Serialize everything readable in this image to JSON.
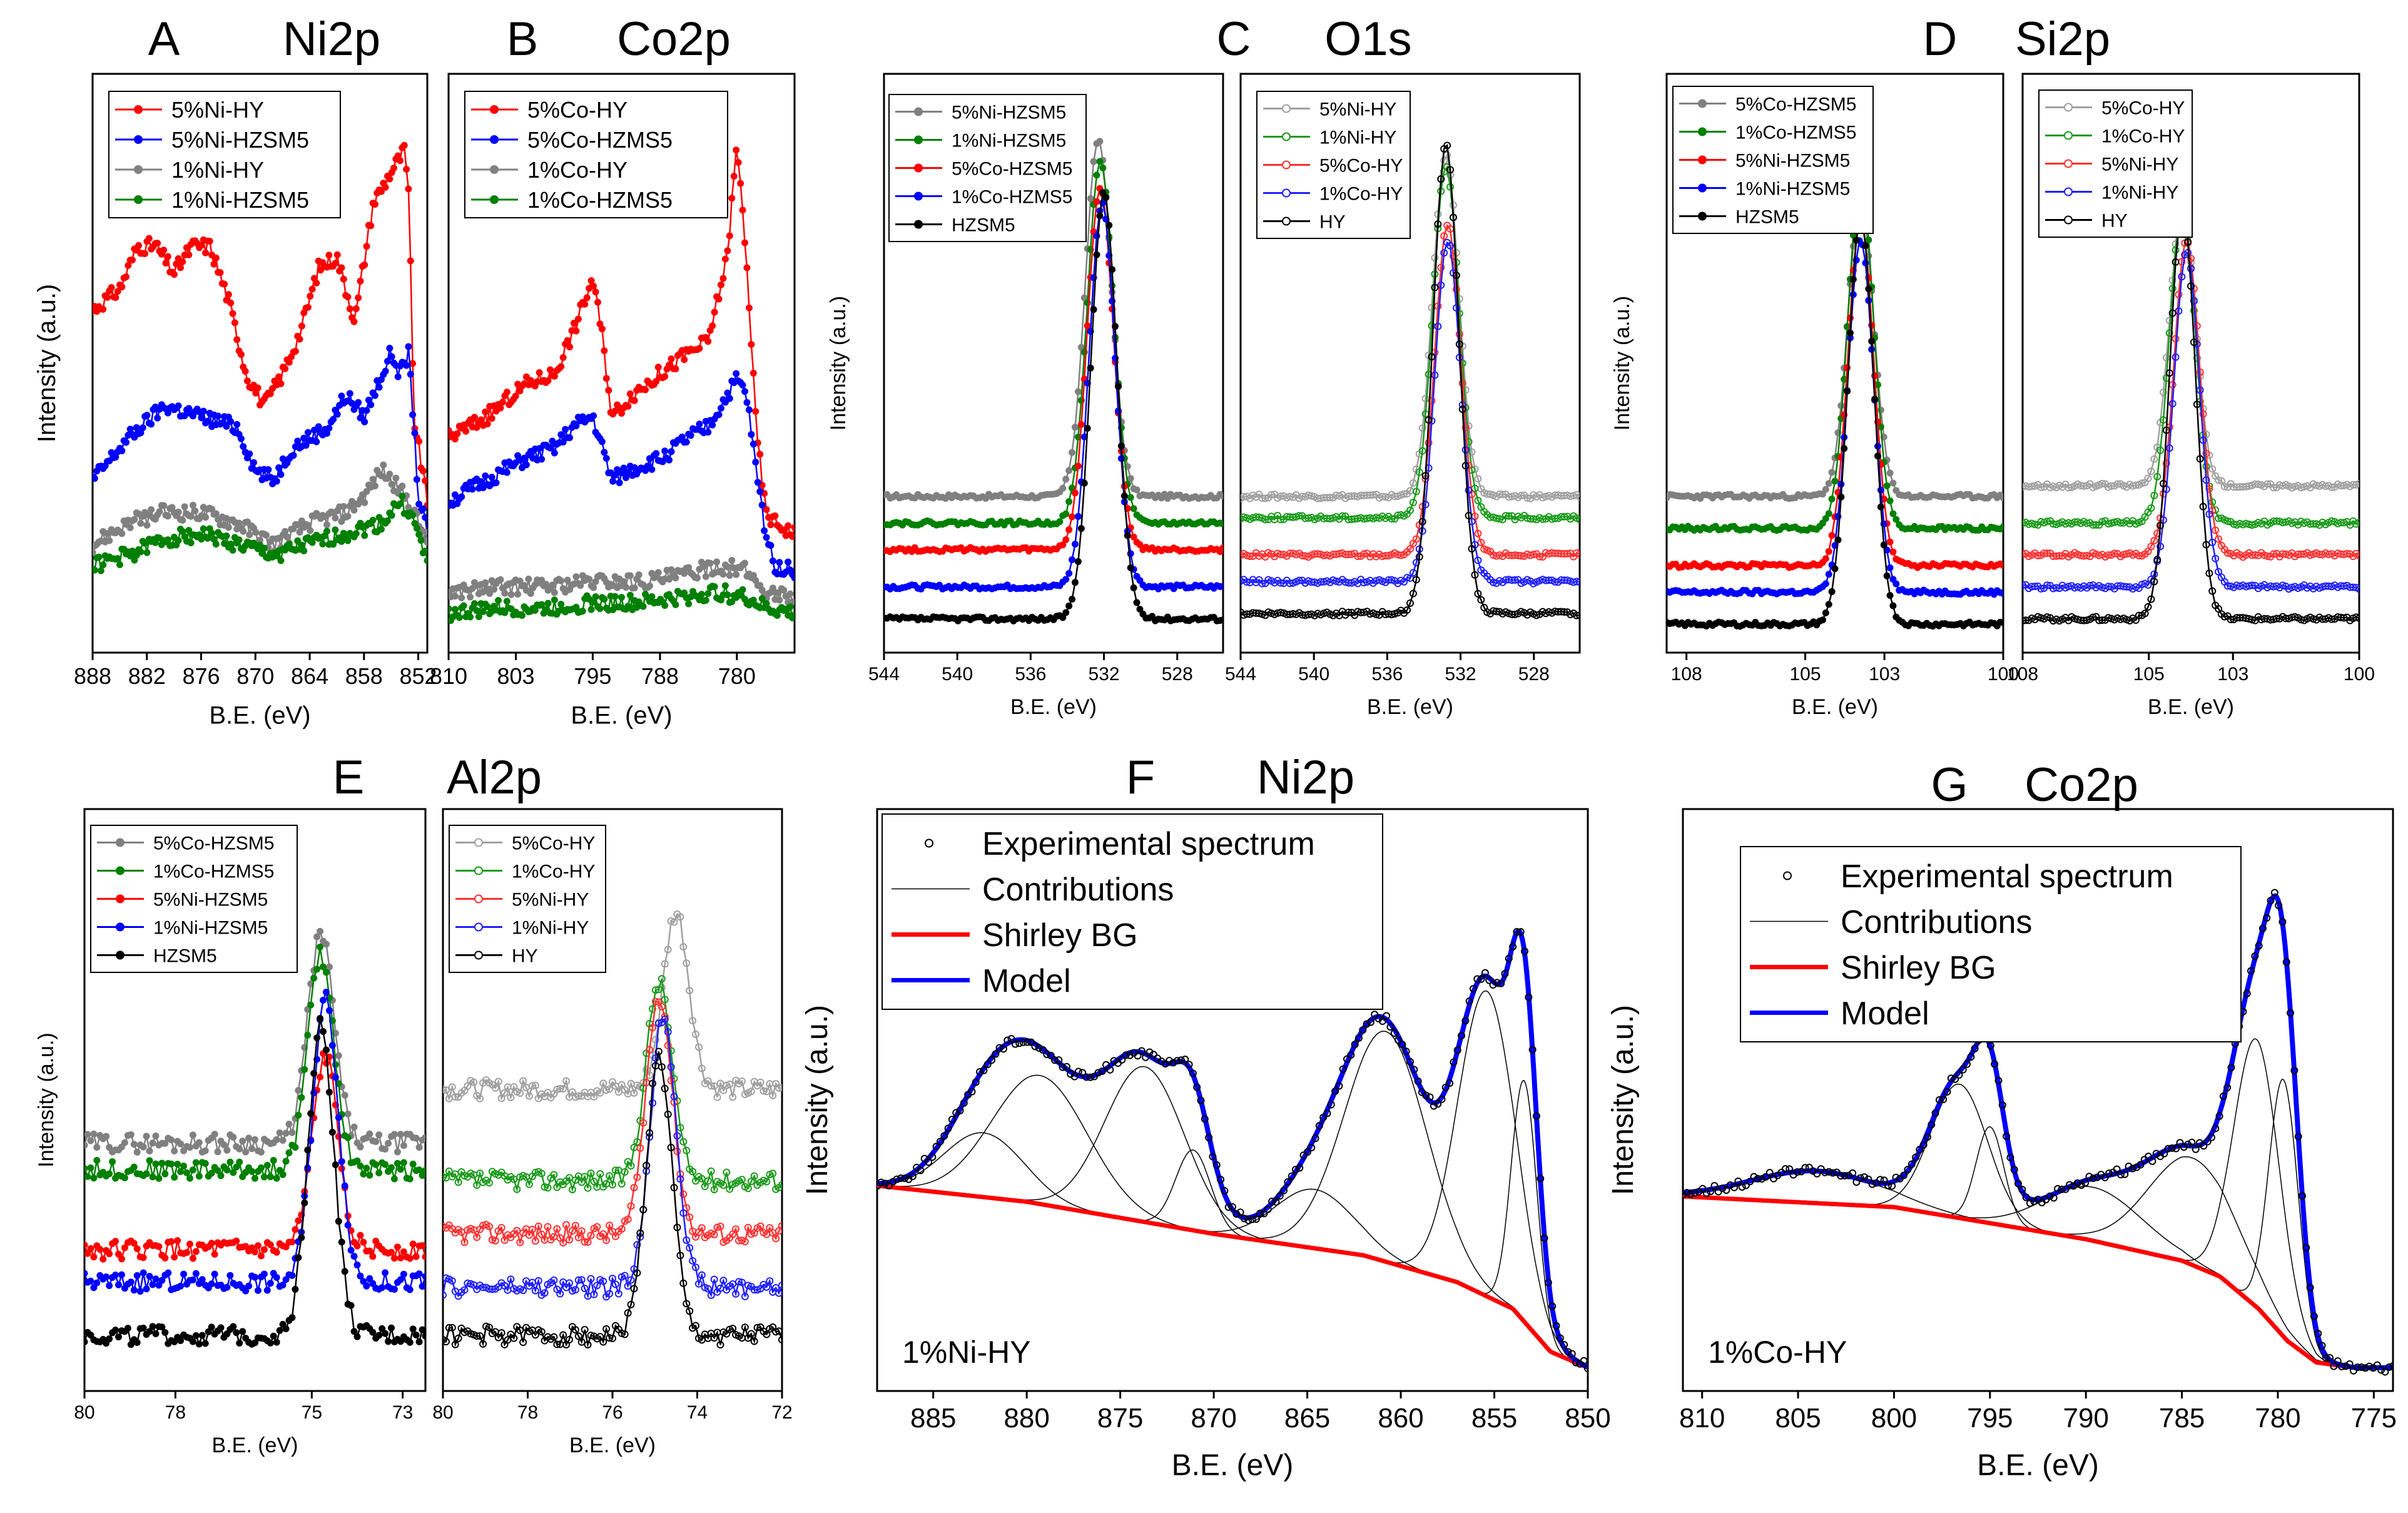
{
  "figure": {
    "panel_titles": [
      {
        "letter": "A",
        "element": "Ni2p"
      },
      {
        "letter": "B",
        "element": "Co2p"
      },
      {
        "letter": "C",
        "element": "O1s"
      },
      {
        "letter": "D",
        "element": "Si2p"
      },
      {
        "letter": "E",
        "element": "Al2p"
      },
      {
        "letter": "F",
        "element": "Ni2p"
      },
      {
        "letter": "G",
        "element": "Co2p"
      }
    ],
    "colors": {
      "red": "#ff0000",
      "blue": "#0000ff",
      "gray": "#808080",
      "green": "#008000",
      "black": "#000000",
      "gray_light": "#a0a0a0",
      "green_light": "#1a9a1a",
      "red_light": "#ff3030",
      "blue_light": "#2020ff"
    }
  },
  "chart_data": [
    {
      "id": "A",
      "type": "line",
      "title": "A   Ni2p",
      "xlabel": "B.E. (eV)",
      "ylabel": "Intensity (a.u.)",
      "xlim": [
        888,
        851
      ],
      "ylim": [
        0,
        100
      ],
      "xticks": [
        888,
        882,
        876,
        870,
        864,
        858,
        852
      ],
      "marker": "filled-circle",
      "legend_position": "top-left",
      "series": [
        {
          "name": "5%Ni-HY",
          "color": "#ff0000",
          "x": [
            888,
            885,
            883,
            881,
            879,
            877,
            875,
            873,
            871,
            869,
            867,
            865,
            863,
            861,
            859,
            857,
            855,
            853.5,
            853,
            852.5,
            851
          ],
          "y": [
            60,
            64,
            72,
            72,
            67,
            72,
            72,
            62,
            48,
            42,
            48,
            56,
            68,
            70,
            58,
            80,
            86,
            90,
            80,
            40,
            24
          ]
        },
        {
          "name": "5%Ni-HZSM5",
          "color": "#0000ff",
          "x": [
            888,
            884,
            880,
            876,
            872,
            870,
            868,
            866,
            862,
            860,
            858,
            856,
            855,
            854,
            853,
            852,
            851
          ],
          "y": [
            28,
            36,
            42,
            40,
            38,
            30,
            28,
            34,
            38,
            44,
            40,
            48,
            52,
            48,
            52,
            25,
            18
          ]
        },
        {
          "name": "1%Ni-HY",
          "color": "#808080",
          "x": [
            888,
            884,
            880,
            876,
            872,
            868,
            864,
            860,
            858,
            856,
            854,
            853,
            852,
            851
          ],
          "y": [
            16,
            20,
            22,
            22,
            20,
            16,
            20,
            22,
            25,
            30,
            26,
            24,
            20,
            16
          ]
        },
        {
          "name": "1%Ni-HZSM5",
          "color": "#008000",
          "x": [
            888,
            884,
            880,
            876,
            872,
            868,
            864,
            860,
            856,
            854,
            853,
            852,
            851
          ],
          "y": [
            12,
            14,
            17,
            18,
            16,
            14,
            16,
            18,
            20,
            24,
            22,
            18,
            12
          ]
        }
      ]
    },
    {
      "id": "B",
      "type": "line",
      "title": "B   Co2p",
      "xlabel": "B.E. (eV)",
      "ylabel": "",
      "xlim": [
        810,
        774
      ],
      "ylim": [
        0,
        100
      ],
      "xticks": [
        810,
        803,
        795,
        788,
        780
      ],
      "marker": "filled-circle",
      "legend_position": "top-left",
      "series": [
        {
          "name": "5%Co-HY",
          "color": "#ff0000",
          "x": [
            810,
            806,
            802,
            799,
            797,
            795,
            794,
            793,
            791,
            788,
            785,
            783,
            781,
            780,
            779,
            778,
            777,
            776,
            774
          ],
          "y": [
            36,
            40,
            46,
            48,
            56,
            66,
            55,
            40,
            44,
            48,
            52,
            54,
            70,
            91,
            70,
            38,
            22,
            20,
            18
          ]
        },
        {
          "name": "5%Co-HZMS5",
          "color": "#0000ff",
          "x": [
            810,
            806,
            802,
            799,
            797,
            795,
            793,
            791,
            788,
            785,
            783,
            781,
            780,
            779,
            778,
            777,
            776,
            774
          ],
          "y": [
            24,
            28,
            32,
            34,
            38,
            40,
            28,
            30,
            32,
            36,
            38,
            44,
            47,
            44,
            30,
            18,
            12,
            11
          ]
        },
        {
          "name": "1%Co-HY",
          "color": "#808080",
          "x": [
            810,
            805,
            800,
            795,
            790,
            786,
            782,
            779,
            777,
            774
          ],
          "y": [
            7,
            8,
            8,
            9,
            9,
            10,
            12,
            11,
            7,
            6
          ]
        },
        {
          "name": "1%Co-HZMS5",
          "color": "#008000",
          "x": [
            810,
            805,
            800,
            795,
            790,
            786,
            782,
            779,
            777,
            774
          ],
          "y": [
            3,
            4,
            4,
            5,
            5,
            6,
            7,
            6,
            4,
            3
          ]
        }
      ]
    },
    {
      "id": "C1",
      "type": "line",
      "title": "C   O1s",
      "xlabel": "B.E. (eV)",
      "ylabel": "Intensity (a.u.)",
      "xlim": [
        544,
        525.5
      ],
      "ylim": [
        0,
        100
      ],
      "xticks": [
        544,
        540,
        536,
        532,
        528
      ],
      "marker": "filled-circle",
      "legend_position": "top-left",
      "series": [
        {
          "name": "5%Ni-HZSM5",
          "color": "#808080",
          "base": 25,
          "peak": 92,
          "center": 532.3
        },
        {
          "name": "1%Ni-HZSM5",
          "color": "#008000",
          "base": 20,
          "peak": 88,
          "center": 532.2
        },
        {
          "name": "5%Co-HZSM5",
          "color": "#ff0000",
          "base": 15,
          "peak": 83,
          "center": 532.2
        },
        {
          "name": "1%Co-HZMS5",
          "color": "#0000ff",
          "base": 8,
          "peak": 80,
          "center": 532.1
        },
        {
          "name": "HZSM5",
          "color": "#000000",
          "base": 2,
          "peak": 82,
          "center": 532.0
        }
      ]
    },
    {
      "id": "C2",
      "type": "line",
      "title": "",
      "xlabel": "B.E. (eV)",
      "ylabel": "",
      "xlim": [
        544,
        525.5
      ],
      "ylim": [
        0,
        100
      ],
      "xticks": [
        544,
        540,
        536,
        532,
        528
      ],
      "marker": "open-circle",
      "legend_position": "top-left",
      "series": [
        {
          "name": "5%Ni-HY",
          "color": "#a0a0a0",
          "base": 25,
          "peak": 89,
          "center": 532.8
        },
        {
          "name": "1%Ni-HY",
          "color": "#1a9a1a",
          "base": 21,
          "peak": 87,
          "center": 532.8
        },
        {
          "name": "5%Co-HY",
          "color": "#ff3030",
          "base": 14,
          "peak": 76,
          "center": 532.7
        },
        {
          "name": "1%Co-HY",
          "color": "#2020ff",
          "base": 9,
          "peak": 73,
          "center": 532.7
        },
        {
          "name": "HY",
          "color": "#000000",
          "base": 3,
          "peak": 91,
          "center": 532.8
        }
      ]
    },
    {
      "id": "D1",
      "type": "line",
      "title": "D   Si2p",
      "xlabel": "B.E. (eV)",
      "ylabel": "Intensity (a.u.)",
      "xlim": [
        108.5,
        100
      ],
      "ylim": [
        0,
        100
      ],
      "xticks": [
        108,
        105,
        103,
        100
      ],
      "marker": "filled-circle",
      "legend_position": "top-left",
      "series": [
        {
          "name": "5%Co-HZSM5",
          "color": "#808080",
          "base": 25,
          "peak": 80,
          "center": 103.6
        },
        {
          "name": "1%Co-HZMS5",
          "color": "#008000",
          "base": 19,
          "peak": 84,
          "center": 103.6
        },
        {
          "name": "5%Ni-HZSM5",
          "color": "#ff0000",
          "base": 12,
          "peak": 77,
          "center": 103.6
        },
        {
          "name": "1%Ni-HZSM5",
          "color": "#0000ff",
          "base": 7,
          "peak": 73,
          "center": 103.6
        },
        {
          "name": "HZSM5",
          "color": "#000000",
          "base": 1,
          "peak": 77,
          "center": 103.6
        }
      ]
    },
    {
      "id": "D2",
      "type": "line",
      "title": "",
      "xlabel": "B.E. (eV)",
      "ylabel": "",
      "xlim": [
        108,
        100
      ],
      "ylim": [
        0,
        100
      ],
      "xticks": [
        108,
        105,
        103,
        100
      ],
      "marker": "open-circle",
      "legend_position": "top-left",
      "series": [
        {
          "name": "5%Co-HY",
          "color": "#a0a0a0",
          "base": 27,
          "peak": 79,
          "center": 104.2
        },
        {
          "name": "1%Co-HY",
          "color": "#1a9a1a",
          "base": 20,
          "peak": 79,
          "center": 104.2
        },
        {
          "name": "5%Ni-HY",
          "color": "#ff3030",
          "base": 14,
          "peak": 73,
          "center": 104.1
        },
        {
          "name": "1%Ni-HY",
          "color": "#2020ff",
          "base": 8,
          "peak": 71,
          "center": 104.1
        },
        {
          "name": "HY",
          "color": "#000000",
          "base": 2,
          "peak": 79,
          "center": 104.2
        }
      ]
    },
    {
      "id": "E1",
      "type": "line",
      "title": "E   Al2p",
      "xlabel": "B.E. (eV)",
      "ylabel": "Intensity (a.u.)",
      "xlim": [
        80,
        72.5
      ],
      "ylim": [
        0,
        100
      ],
      "xticks": [
        80,
        78,
        75,
        73
      ],
      "marker": "filled-circle",
      "legend_position": "top-left",
      "series": [
        {
          "name": "5%Co-HZSM5",
          "color": "#808080",
          "base": 42,
          "peak": 81,
          "center": 74.8
        },
        {
          "name": "1%Co-HZMS5",
          "color": "#008000",
          "base": 37,
          "peak": 77,
          "center": 74.8
        },
        {
          "name": "5%Ni-HZSM5",
          "color": "#ff0000",
          "base": 22,
          "peak": 58,
          "center": 74.7
        },
        {
          "name": "1%Ni-HZSM5",
          "color": "#0000ff",
          "base": 16,
          "peak": 69,
          "center": 74.7
        },
        {
          "name": "HZSM5",
          "color": "#000000",
          "base": 6,
          "peak": 64,
          "center": 74.8
        }
      ]
    },
    {
      "id": "E2",
      "type": "line",
      "title": "",
      "xlabel": "B.E. (eV)",
      "ylabel": "",
      "xlim": [
        80,
        72
      ],
      "ylim": [
        0,
        100
      ],
      "xticks": [
        80,
        78,
        76,
        74,
        72
      ],
      "marker": "open-circle",
      "legend_position": "top-left",
      "series": [
        {
          "name": "5%Co-HY",
          "color": "#a0a0a0",
          "base": 52,
          "peak": 85,
          "center": 74.5
        },
        {
          "name": "1%Co-HY",
          "color": "#1a9a1a",
          "base": 35,
          "peak": 72,
          "center": 74.9
        },
        {
          "name": "5%Ni-HY",
          "color": "#ff3030",
          "base": 25,
          "peak": 70,
          "center": 74.9
        },
        {
          "name": "1%Ni-HY",
          "color": "#2020ff",
          "base": 15,
          "peak": 66,
          "center": 74.8
        },
        {
          "name": "HY",
          "color": "#000000",
          "base": 6,
          "peak": 58,
          "center": 74.9
        }
      ]
    },
    {
      "id": "F",
      "type": "line",
      "title": "F   Ni2p",
      "xlabel": "B.E. (eV)",
      "ylabel": "Intensity (a.u.)",
      "annotation": "1%Ni-HY",
      "xlim": [
        888,
        850
      ],
      "ylim": [
        0,
        100
      ],
      "xticks": [
        885,
        880,
        875,
        870,
        865,
        860,
        855,
        850
      ],
      "legend_position": "top-left",
      "legend": [
        "Experimental spectrum",
        "Contributions",
        "Shirley BG",
        "Model"
      ],
      "background": {
        "x": [
          888,
          880,
          870,
          862,
          857,
          854,
          852,
          850
        ],
        "y": [
          34,
          31,
          25,
          21,
          16,
          11,
          3,
          0
        ]
      },
      "components": [
        {
          "center": 882.3,
          "height": 12,
          "fwhm": 5.0
        },
        {
          "center": 879.3,
          "height": 24,
          "fwhm": 6.0
        },
        {
          "center": 873.7,
          "height": 29,
          "fwhm": 5.0
        },
        {
          "center": 871.1,
          "height": 15,
          "fwhm": 2.2
        },
        {
          "center": 864.6,
          "height": 11,
          "fwhm": 5.0
        },
        {
          "center": 860.8,
          "height": 43,
          "fwhm": 5.2
        },
        {
          "center": 855.4,
          "height": 57,
          "fwhm": 3.6
        },
        {
          "center": 853.4,
          "height": 45,
          "fwhm": 1.6
        }
      ]
    },
    {
      "id": "G",
      "type": "line",
      "title": "G   Co2p",
      "xlabel": "B.E. (eV)",
      "ylabel": "Intensity (a.u.)",
      "annotation": "1%Co-HY",
      "xlim": [
        811,
        774
      ],
      "ylim": [
        0,
        100
      ],
      "xticks": [
        810,
        805,
        800,
        795,
        790,
        785,
        780,
        775
      ],
      "legend_position": "top-left",
      "legend": [
        "Experimental spectrum",
        "Contributions",
        "Shirley BG",
        "Model"
      ],
      "background": {
        "x": [
          811,
          800,
          795,
          790,
          785,
          783,
          781,
          779.5,
          778,
          776,
          774
        ],
        "y": [
          32,
          30,
          27,
          24,
          20,
          17,
          11,
          5,
          1,
          0,
          0
        ]
      },
      "components": [
        {
          "center": 804.0,
          "height": 6,
          "fwhm": 8.0
        },
        {
          "center": 796.6,
          "height": 25,
          "fwhm": 3.5
        },
        {
          "center": 795.0,
          "height": 18,
          "fwhm": 1.7
        },
        {
          "center": 789.6,
          "height": 10,
          "fwhm": 6.0
        },
        {
          "center": 784.4,
          "height": 20,
          "fwhm": 5.5
        },
        {
          "center": 781.1,
          "height": 50,
          "fwhm": 2.8
        },
        {
          "center": 779.7,
          "height": 48,
          "fwhm": 1.8
        }
      ]
    }
  ]
}
